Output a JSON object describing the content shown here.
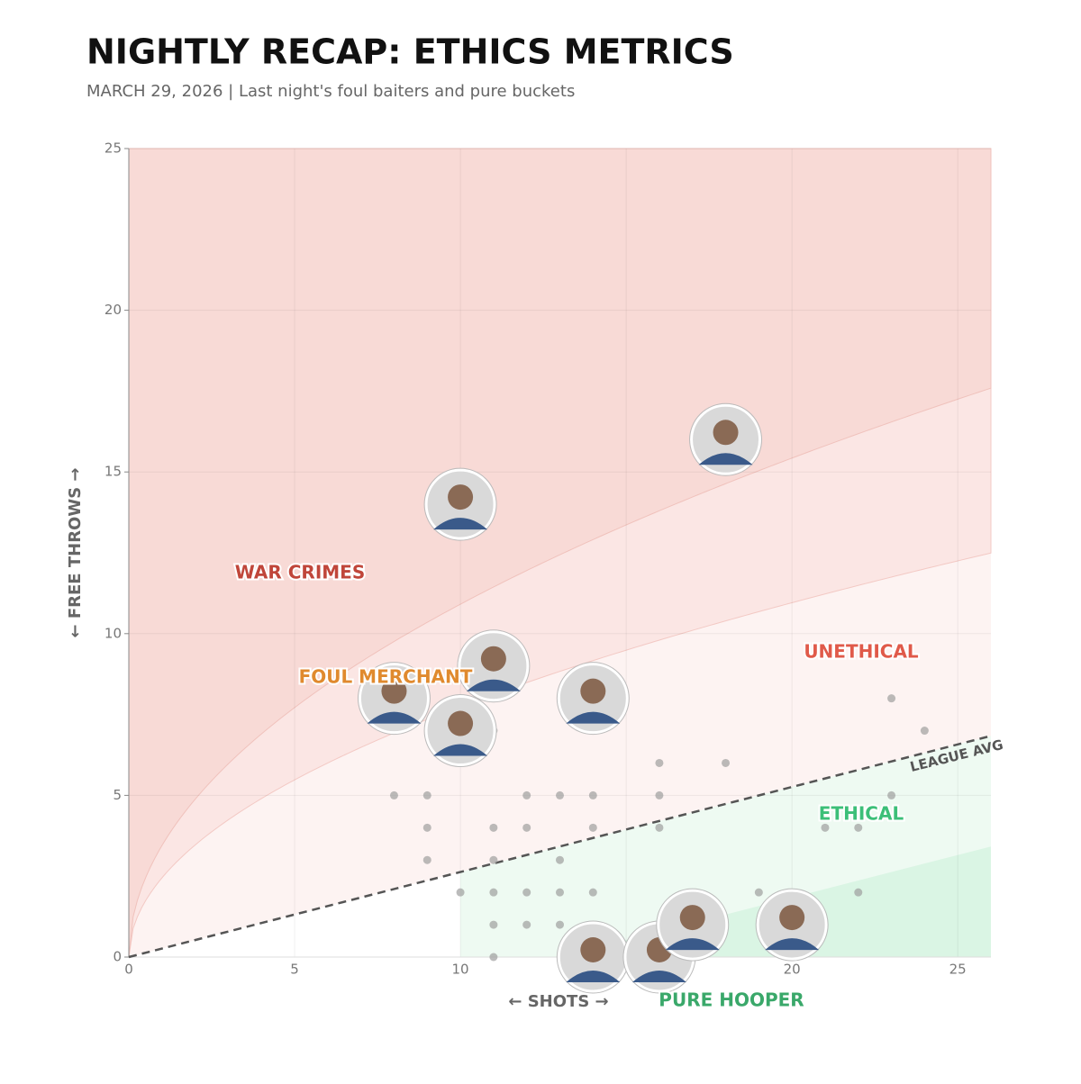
{
  "chart_data": {
    "type": "scatter",
    "title": "NIGHTLY RECAP: ETHICS METRICS",
    "subtitle": "MARCH 29, 2026 | Last night's foul baiters and pure buckets",
    "x_label": "← SHOTS →",
    "y_label": "← FREE THROWS →",
    "xlim": [
      0,
      26
    ],
    "ylim": [
      0,
      25
    ],
    "xticks": [
      0,
      5,
      10,
      15,
      20,
      25
    ],
    "yticks": [
      0,
      5,
      10,
      15,
      20,
      25
    ],
    "grid": true,
    "bands": [
      {
        "coef": 3.45
      },
      {
        "coef": 2.45
      }
    ],
    "reference_line": {
      "label": "LEAGUE AVG",
      "slope": 0.263
    },
    "zones": [
      "WAR CRIMES",
      "FOUL MERCHANT",
      "UNETHICAL",
      "ETHICAL",
      "PURE HOOPER"
    ],
    "series": [
      {
        "color": "#9e9e9e",
        "x": [
          8,
          9,
          9,
          9,
          10,
          11,
          11,
          11,
          11,
          11,
          11,
          12,
          12,
          12,
          12,
          13,
          13,
          13,
          13,
          14,
          14,
          14,
          16,
          16,
          16,
          18,
          19,
          21,
          22,
          22,
          23,
          23,
          24
        ],
        "values": [
          5,
          5,
          4,
          3,
          2,
          4,
          3,
          2,
          1,
          0,
          7,
          5,
          4,
          2,
          1,
          5,
          3,
          2,
          1,
          5,
          4,
          2,
          6,
          5,
          4,
          6,
          2,
          4,
          4,
          2,
          8,
          5,
          7
        ]
      },
      {
        "color": "#d9d9d9",
        "x": [
          18,
          10,
          11,
          8,
          10,
          14,
          14,
          16,
          17,
          20
        ],
        "values": [
          16,
          14,
          9,
          8,
          7,
          8,
          0,
          0,
          1,
          1
        ]
      }
    ]
  }
}
